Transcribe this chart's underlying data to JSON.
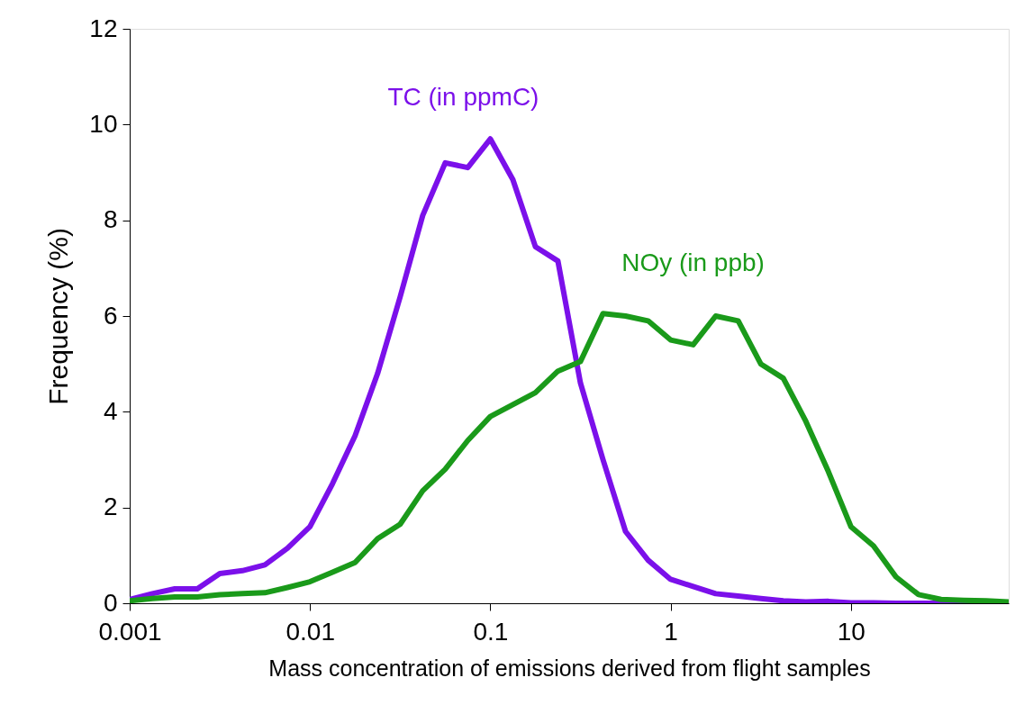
{
  "chart_data": {
    "type": "line",
    "xlabel": "Mass concentration of emissions derived from flight samples",
    "ylabel": "Frequency (%)",
    "x": [
      0.001,
      0.001334,
      0.001778,
      0.002371,
      0.003162,
      0.004217,
      0.005623,
      0.007499,
      0.01,
      0.01334,
      0.01778,
      0.02371,
      0.03162,
      0.04217,
      0.05623,
      0.07499,
      0.1,
      0.1334,
      0.1778,
      0.2371,
      0.3162,
      0.4217,
      0.5623,
      0.7499,
      1,
      1.334,
      1.778,
      2.371,
      3.162,
      4.217,
      5.623,
      7.499,
      10,
      13.34,
      17.78,
      23.71,
      31.62,
      42.17,
      56.23,
      74.99
    ],
    "series": [
      {
        "name": "TC (in ppmC)",
        "color": "#7b10ea",
        "values": [
          0.08,
          0.2,
          0.3,
          0.3,
          0.62,
          0.68,
          0.8,
          1.15,
          1.6,
          2.5,
          3.5,
          4.8,
          6.4,
          8.1,
          9.2,
          9.1,
          9.7,
          8.85,
          7.45,
          7.15,
          4.6,
          3.0,
          1.5,
          0.9,
          0.5,
          0.35,
          0.2,
          0.15,
          0.1,
          0.05,
          0.03,
          0.04,
          0.01,
          0.01,
          0,
          0,
          0,
          0,
          0,
          0
        ]
      },
      {
        "name": "NOy (in ppb)",
        "color": "#1a9a1a",
        "values": [
          0.05,
          0.1,
          0.13,
          0.13,
          0.18,
          0.2,
          0.22,
          0.33,
          0.45,
          0.65,
          0.85,
          1.35,
          1.65,
          2.35,
          2.8,
          3.4,
          3.9,
          4.15,
          4.4,
          4.85,
          5.05,
          6.05,
          6.0,
          5.9,
          5.5,
          5.4,
          6.0,
          5.9,
          5.0,
          4.7,
          3.8,
          2.75,
          1.6,
          1.2,
          0.55,
          0.18,
          0.08,
          0.06,
          0.05,
          0.03
        ]
      }
    ],
    "log": "x",
    "xlim": [
      0.001,
      74.99
    ],
    "xticks": [
      0.001,
      0.01,
      0.1,
      1,
      10
    ],
    "ylim": [
      0,
      12
    ],
    "yticks": [
      0,
      2,
      4,
      6,
      8,
      10,
      12
    ],
    "grid": false,
    "legend": false,
    "line_style": "solid",
    "marker": "none"
  }
}
